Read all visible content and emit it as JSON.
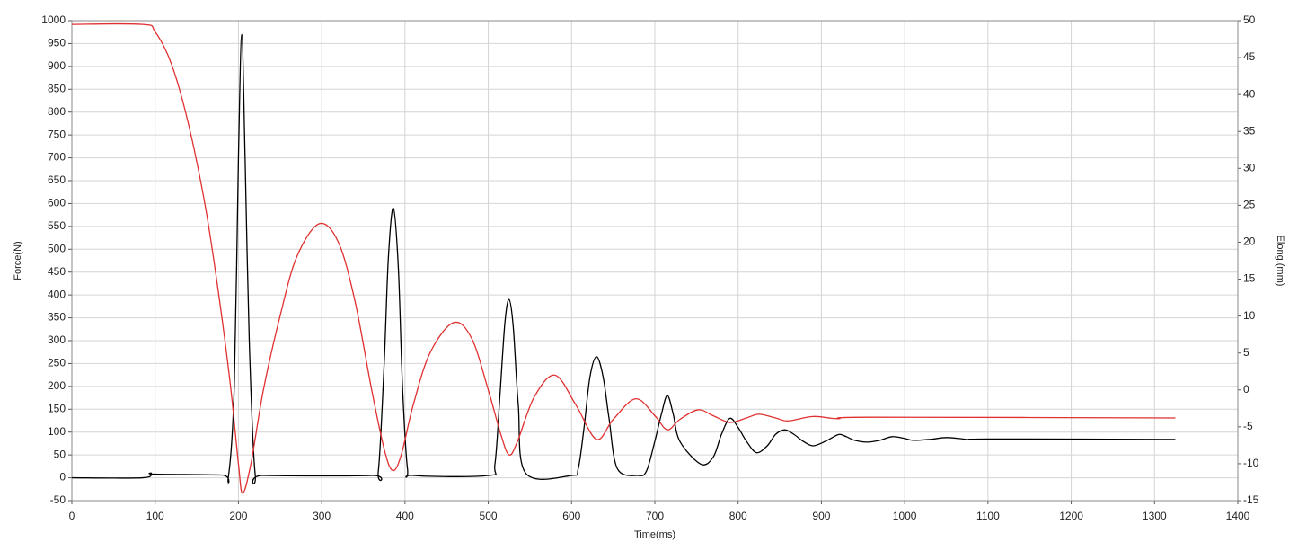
{
  "chart_data": {
    "type": "line",
    "xlabel": "Time(ms)",
    "ylabel": "Force(N)",
    "y2label": "Elong.(mm)",
    "xlim": [
      0,
      1400
    ],
    "xticks": [
      0,
      100,
      200,
      300,
      400,
      500,
      600,
      700,
      800,
      900,
      1000,
      1100,
      1200,
      1300,
      1400
    ],
    "ylim": [
      -50,
      1000
    ],
    "yticks": [
      -50,
      0,
      50,
      100,
      150,
      200,
      250,
      300,
      350,
      400,
      450,
      500,
      550,
      600,
      650,
      700,
      750,
      800,
      850,
      900,
      950,
      1000
    ],
    "y2lim": [
      -15,
      50
    ],
    "y2ticks": [
      -15,
      -10,
      -5,
      0,
      5,
      10,
      15,
      20,
      25,
      30,
      35,
      40,
      45,
      50
    ],
    "grid": true,
    "series": [
      {
        "color": "#000000",
        "x": [
          0,
          85,
          95,
          100,
          180,
          188,
          195,
          200,
          204,
          208,
          213,
          220,
          230,
          360,
          368,
          375,
          380,
          386,
          392,
          397,
          403,
          410,
          500,
          508,
          514,
          520,
          525,
          530,
          536,
          545,
          600,
          608,
          615,
          622,
          630,
          638,
          645,
          655,
          680,
          690,
          700,
          708,
          715,
          722,
          730,
          755,
          770,
          780,
          790,
          800,
          810,
          822,
          835,
          845,
          856,
          867,
          878,
          890,
          905,
          915,
          922,
          930,
          940,
          955,
          970,
          985,
          1000,
          1010,
          1030,
          1050,
          1070,
          1080,
          1100,
          1325
        ],
        "values": [
          0,
          0,
          10,
          8,
          6,
          3,
          200,
          700,
          970,
          700,
          300,
          10,
          5,
          5,
          15,
          250,
          480,
          590,
          460,
          200,
          20,
          5,
          5,
          30,
          180,
          340,
          390,
          330,
          160,
          10,
          5,
          20,
          110,
          220,
          265,
          220,
          130,
          20,
          5,
          15,
          80,
          140,
          180,
          140,
          80,
          30,
          45,
          95,
          130,
          110,
          80,
          55,
          70,
          95,
          105,
          95,
          80,
          70,
          80,
          90,
          95,
          90,
          82,
          78,
          82,
          90,
          86,
          82,
          84,
          88,
          85,
          83,
          85,
          84
        ]
      },
      {
        "color": "#e03030",
        "axis": "y2",
        "x": [
          0,
          85,
          100,
          120,
          140,
          160,
          175,
          190,
          200,
          205,
          215,
          230,
          250,
          270,
          297,
          320,
          340,
          360,
          375,
          385,
          395,
          410,
          430,
          458,
          480,
          500,
          515,
          525,
          535,
          555,
          580,
          605,
          630,
          650,
          677,
          700,
          715,
          730,
          752,
          770,
          790,
          810,
          825,
          845,
          860,
          890,
          920,
          960,
          1325
        ],
        "values": [
          49.5,
          49.5,
          48.5,
          44,
          36,
          25,
          14,
          1,
          -10,
          -14,
          -10,
          0,
          10,
          18,
          22.5,
          20,
          12,
          0,
          -8,
          -10.9,
          -9,
          -2,
          5,
          9.1,
          7,
          0,
          -6,
          -8.8,
          -7,
          -1,
          2,
          -2,
          -6.7,
          -4,
          -1.2,
          -3.5,
          -5.4,
          -4,
          -2.7,
          -3.5,
          -4.4,
          -3.8,
          -3.3,
          -3.8,
          -4.2,
          -3.6,
          -3.9,
          -3.7,
          -3.8
        ]
      }
    ]
  }
}
